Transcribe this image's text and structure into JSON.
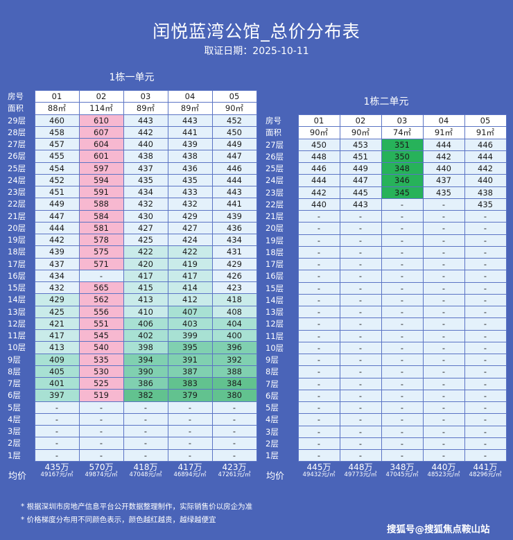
{
  "title": "闰悦蓝湾公馆_总价分布表",
  "date_line": "取证日期：2025-10-11",
  "labels": {
    "room_no": "房号",
    "area": "面积",
    "avg": "均价"
  },
  "unit1": {
    "caption": "1栋一单元",
    "rooms": [
      "01",
      "02",
      "03",
      "04",
      "05"
    ],
    "areas": [
      "88㎡",
      "114㎡",
      "89㎡",
      "89㎡",
      "90㎡"
    ],
    "floors": [
      {
        "floor": "29层",
        "p": [
          "460",
          "610",
          "443",
          "443",
          "452"
        ]
      },
      {
        "floor": "28层",
        "p": [
          "458",
          "607",
          "442",
          "441",
          "450"
        ]
      },
      {
        "floor": "27层",
        "p": [
          "457",
          "604",
          "440",
          "439",
          "449"
        ]
      },
      {
        "floor": "26层",
        "p": [
          "455",
          "601",
          "438",
          "438",
          "447"
        ]
      },
      {
        "floor": "25层",
        "p": [
          "454",
          "597",
          "437",
          "436",
          "446"
        ]
      },
      {
        "floor": "24层",
        "p": [
          "452",
          "594",
          "435",
          "435",
          "444"
        ]
      },
      {
        "floor": "23层",
        "p": [
          "451",
          "591",
          "434",
          "433",
          "443"
        ]
      },
      {
        "floor": "22层",
        "p": [
          "449",
          "588",
          "432",
          "432",
          "441"
        ]
      },
      {
        "floor": "21层",
        "p": [
          "447",
          "584",
          "430",
          "429",
          "439"
        ]
      },
      {
        "floor": "20层",
        "p": [
          "444",
          "581",
          "427",
          "427",
          "436"
        ]
      },
      {
        "floor": "19层",
        "p": [
          "442",
          "578",
          "425",
          "424",
          "434"
        ]
      },
      {
        "floor": "18层",
        "p": [
          "439",
          "575",
          "422",
          "422",
          "431"
        ]
      },
      {
        "floor": "17层",
        "p": [
          "437",
          "571",
          "420",
          "419",
          "429"
        ]
      },
      {
        "floor": "16层",
        "p": [
          "434",
          "-",
          "417",
          "417",
          "426"
        ]
      },
      {
        "floor": "15层",
        "p": [
          "432",
          "565",
          "415",
          "414",
          "423"
        ]
      },
      {
        "floor": "14层",
        "p": [
          "429",
          "562",
          "413",
          "412",
          "418"
        ]
      },
      {
        "floor": "13层",
        "p": [
          "425",
          "556",
          "410",
          "407",
          "408"
        ]
      },
      {
        "floor": "12层",
        "p": [
          "421",
          "551",
          "406",
          "403",
          "404"
        ]
      },
      {
        "floor": "11层",
        "p": [
          "417",
          "545",
          "402",
          "399",
          "400"
        ]
      },
      {
        "floor": "10层",
        "p": [
          "413",
          "540",
          "398",
          "395",
          "396"
        ]
      },
      {
        "floor": "9层",
        "p": [
          "409",
          "535",
          "394",
          "391",
          "392"
        ]
      },
      {
        "floor": "8层",
        "p": [
          "405",
          "530",
          "390",
          "387",
          "388"
        ]
      },
      {
        "floor": "7层",
        "p": [
          "401",
          "525",
          "386",
          "383",
          "384"
        ]
      },
      {
        "floor": "6层",
        "p": [
          "397",
          "519",
          "382",
          "379",
          "380"
        ]
      },
      {
        "floor": "5层",
        "p": [
          "-",
          "-",
          "-",
          "-",
          "-"
        ]
      },
      {
        "floor": "4层",
        "p": [
          "-",
          "-",
          "-",
          "-",
          "-"
        ]
      },
      {
        "floor": "3层",
        "p": [
          "-",
          "-",
          "-",
          "-",
          "-"
        ]
      },
      {
        "floor": "2层",
        "p": [
          "-",
          "-",
          "-",
          "-",
          "-"
        ]
      },
      {
        "floor": "1层",
        "p": [
          "-",
          "-",
          "-",
          "-",
          "-"
        ]
      }
    ],
    "avg": [
      {
        "total": "435万",
        "unit": "49167元/㎡"
      },
      {
        "total": "570万",
        "unit": "49874元/㎡"
      },
      {
        "total": "418万",
        "unit": "47048元/㎡"
      },
      {
        "total": "417万",
        "unit": "46894元/㎡"
      },
      {
        "total": "423万",
        "unit": "47261元/㎡"
      }
    ]
  },
  "unit2": {
    "caption": "1栋二单元",
    "rooms": [
      "01",
      "02",
      "03",
      "04",
      "05"
    ],
    "areas": [
      "90㎡",
      "90㎡",
      "74㎡",
      "91㎡",
      "91㎡"
    ],
    "floors": [
      {
        "floor": "27层",
        "p": [
          "450",
          "453",
          "351",
          "444",
          "446"
        ]
      },
      {
        "floor": "26层",
        "p": [
          "448",
          "451",
          "350",
          "442",
          "444"
        ]
      },
      {
        "floor": "25层",
        "p": [
          "446",
          "449",
          "348",
          "440",
          "442"
        ]
      },
      {
        "floor": "24层",
        "p": [
          "444",
          "447",
          "346",
          "437",
          "440"
        ]
      },
      {
        "floor": "23层",
        "p": [
          "442",
          "445",
          "345",
          "435",
          "438"
        ]
      },
      {
        "floor": "22层",
        "p": [
          "440",
          "443",
          "-",
          "-",
          "435"
        ]
      },
      {
        "floor": "21层",
        "p": [
          "-",
          "-",
          "-",
          "-",
          "-"
        ]
      },
      {
        "floor": "20层",
        "p": [
          "-",
          "-",
          "-",
          "-",
          "-"
        ]
      },
      {
        "floor": "19层",
        "p": [
          "-",
          "-",
          "-",
          "-",
          "-"
        ]
      },
      {
        "floor": "18层",
        "p": [
          "-",
          "-",
          "-",
          "-",
          "-"
        ]
      },
      {
        "floor": "17层",
        "p": [
          "-",
          "-",
          "-",
          "-",
          "-"
        ]
      },
      {
        "floor": "16层",
        "p": [
          "-",
          "-",
          "-",
          "-",
          "-"
        ]
      },
      {
        "floor": "15层",
        "p": [
          "-",
          "-",
          "-",
          "-",
          "-"
        ]
      },
      {
        "floor": "14层",
        "p": [
          "-",
          "-",
          "-",
          "-",
          "-"
        ]
      },
      {
        "floor": "13层",
        "p": [
          "-",
          "-",
          "-",
          "-",
          "-"
        ]
      },
      {
        "floor": "12层",
        "p": [
          "-",
          "-",
          "-",
          "-",
          "-"
        ]
      },
      {
        "floor": "11层",
        "p": [
          "-",
          "-",
          "-",
          "-",
          "-"
        ]
      },
      {
        "floor": "10层",
        "p": [
          "-",
          "-",
          "-",
          "-",
          "-"
        ]
      },
      {
        "floor": "9层",
        "p": [
          "-",
          "-",
          "-",
          "-",
          "-"
        ]
      },
      {
        "floor": "8层",
        "p": [
          "-",
          "-",
          "-",
          "-",
          "-"
        ]
      },
      {
        "floor": "7层",
        "p": [
          "-",
          "-",
          "-",
          "-",
          "-"
        ]
      },
      {
        "floor": "6层",
        "p": [
          "-",
          "-",
          "-",
          "-",
          "-"
        ]
      },
      {
        "floor": "5层",
        "p": [
          "-",
          "-",
          "-",
          "-",
          "-"
        ]
      },
      {
        "floor": "4层",
        "p": [
          "-",
          "-",
          "-",
          "-",
          "-"
        ]
      },
      {
        "floor": "3层",
        "p": [
          "-",
          "-",
          "-",
          "-",
          "-"
        ]
      },
      {
        "floor": "2层",
        "p": [
          "-",
          "-",
          "-",
          "-",
          "-"
        ]
      },
      {
        "floor": "1层",
        "p": [
          "-",
          "-",
          "-",
          "-",
          "-"
        ]
      }
    ],
    "avg": [
      {
        "total": "445万",
        "unit": "49432元/㎡"
      },
      {
        "total": "448万",
        "unit": "49773元/㎡"
      },
      {
        "total": "348万",
        "unit": "47045元/㎡"
      },
      {
        "total": "440万",
        "unit": "48523元/㎡"
      },
      {
        "total": "441万",
        "unit": "48296元/㎡"
      }
    ]
  },
  "colors": {
    "background": "#4a64b8",
    "empty": "#e4f1fb",
    "pink": "#f7b8d0",
    "green_light": "#c9ebe9",
    "green_dark": "#27b25a"
  },
  "notes": [
    "* 根据深圳市房地产信息平台公开数据整理制作，实际销售价以房企为准",
    "* 价格梯度分布用不同颜色表示，颜色越红越贵，越绿越便宜"
  ],
  "watermark": "搜狐号@搜狐焦点鞍山站"
}
